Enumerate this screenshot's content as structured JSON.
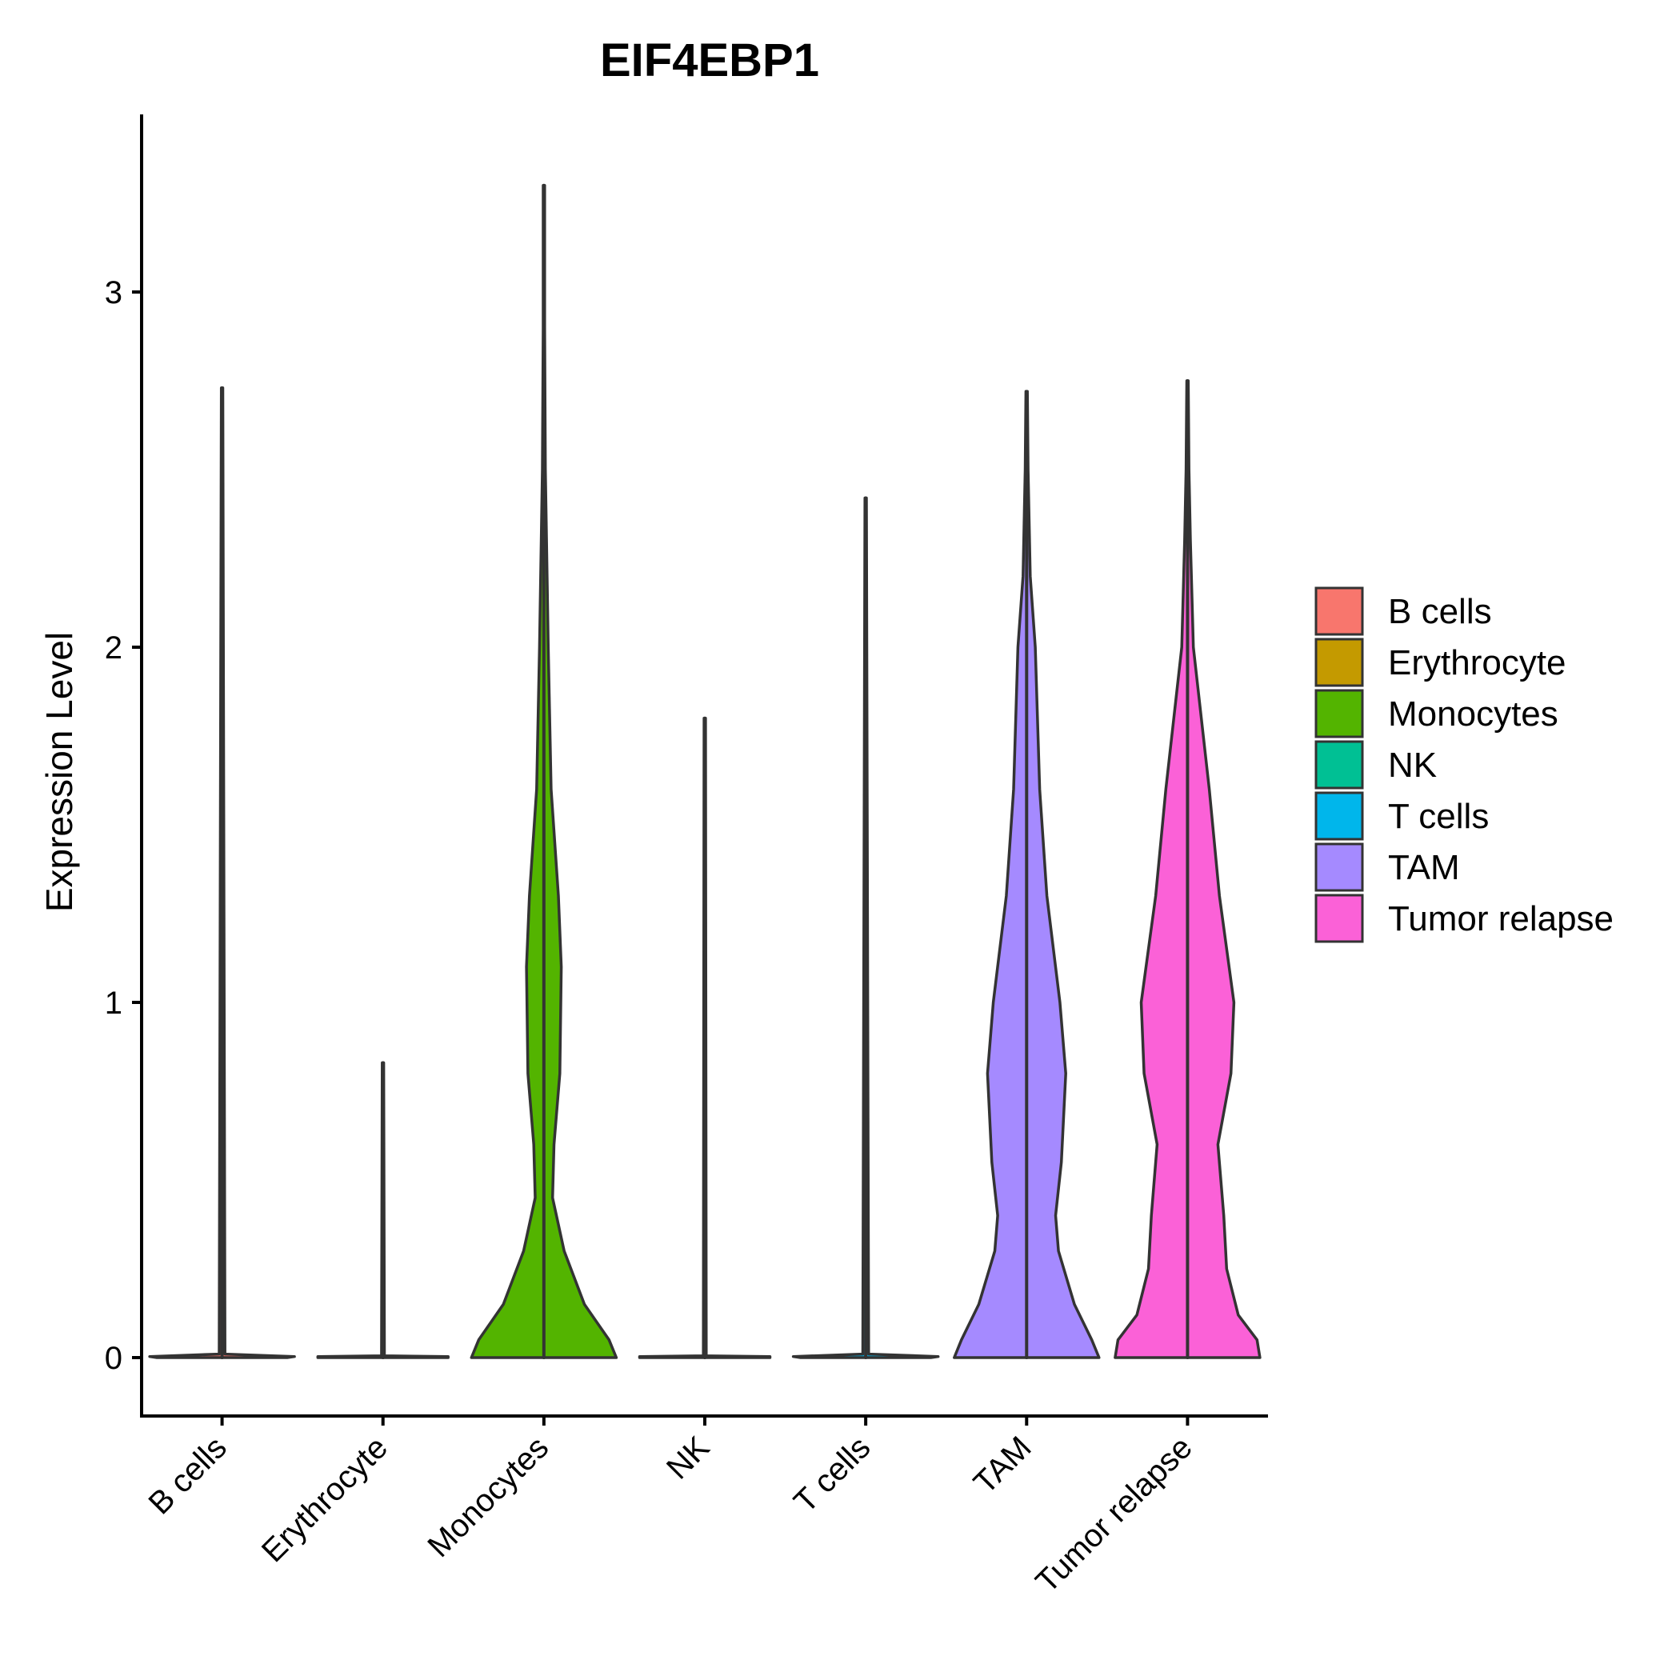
{
  "chart_data": {
    "type": "violin",
    "title": "EIF4EBP1",
    "xlabel": "",
    "ylabel": "Expression Level",
    "ylim": [
      -0.17,
      3.5
    ],
    "yticks": [
      0,
      1,
      2,
      3
    ],
    "legend_position": "right",
    "categories": [
      "B cells",
      "Erythrocyte",
      "Monocytes",
      "NK",
      "T cells",
      "TAM",
      "Tumor relapse"
    ],
    "colors": [
      "#F8766D",
      "#C49A00",
      "#53B400",
      "#00C094",
      "#00B6EB",
      "#A58AFF",
      "#FB61D7"
    ],
    "max_values": [
      2.73,
      0.83,
      3.3,
      1.8,
      2.42,
      2.72,
      2.75
    ],
    "density_profiles": [
      [
        [
          0,
          0.45
        ],
        [
          0.003,
          0.5
        ],
        [
          0.01,
          0.02
        ],
        [
          2.73,
          0.005
        ]
      ],
      [
        [
          0,
          0.45
        ],
        [
          0.003,
          0.45
        ],
        [
          0.005,
          0.01
        ],
        [
          0.83,
          0.005
        ]
      ],
      [
        [
          0,
          0.5
        ],
        [
          0.05,
          0.45
        ],
        [
          0.15,
          0.28
        ],
        [
          0.3,
          0.14
        ],
        [
          0.45,
          0.06
        ],
        [
          0.6,
          0.07
        ],
        [
          0.8,
          0.11
        ],
        [
          1.1,
          0.12
        ],
        [
          1.3,
          0.1
        ],
        [
          1.6,
          0.05
        ],
        [
          2.0,
          0.03
        ],
        [
          2.5,
          0.01
        ],
        [
          2.9,
          0.005
        ],
        [
          3.3,
          0.005
        ]
      ],
      [
        [
          0,
          0.45
        ],
        [
          0.003,
          0.45
        ],
        [
          0.005,
          0.01
        ],
        [
          1.8,
          0.005
        ]
      ],
      [
        [
          0,
          0.45
        ],
        [
          0.003,
          0.5
        ],
        [
          0.01,
          0.02
        ],
        [
          2.42,
          0.005
        ]
      ],
      [
        [
          0,
          0.5
        ],
        [
          0.05,
          0.45
        ],
        [
          0.15,
          0.33
        ],
        [
          0.3,
          0.22
        ],
        [
          0.4,
          0.2
        ],
        [
          0.55,
          0.24
        ],
        [
          0.8,
          0.27
        ],
        [
          1.0,
          0.23
        ],
        [
          1.3,
          0.14
        ],
        [
          1.6,
          0.09
        ],
        [
          2.0,
          0.06
        ],
        [
          2.2,
          0.025
        ],
        [
          2.5,
          0.01
        ],
        [
          2.72,
          0.005
        ]
      ],
      [
        [
          0,
          0.5
        ],
        [
          0.05,
          0.48
        ],
        [
          0.12,
          0.35
        ],
        [
          0.25,
          0.27
        ],
        [
          0.4,
          0.25
        ],
        [
          0.6,
          0.21
        ],
        [
          0.8,
          0.3
        ],
        [
          1.0,
          0.32
        ],
        [
          1.3,
          0.22
        ],
        [
          1.6,
          0.15
        ],
        [
          2.0,
          0.04
        ],
        [
          2.3,
          0.02
        ],
        [
          2.5,
          0.01
        ],
        [
          2.75,
          0.005
        ]
      ]
    ]
  }
}
